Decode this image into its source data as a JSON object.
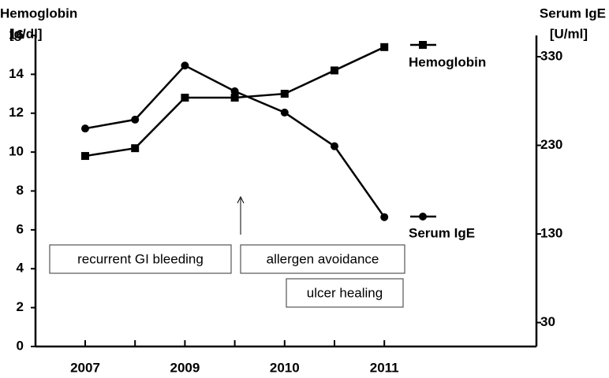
{
  "chart_data": {
    "type": "line",
    "ylabel": "Hemoglobin",
    "yunit": "[g/dl]",
    "y2label": "Serum IgE",
    "y2unit": "[U/ml]",
    "categories": [
      "2007",
      null,
      "2009",
      null,
      "2010",
      null,
      "2011"
    ],
    "series": [
      {
        "name": "Hemoglobin",
        "color": "#000000",
        "marker": "square",
        "values": [
          9.8,
          10.2,
          12.8,
          12.8,
          13.0,
          14.2,
          15.4
        ]
      },
      {
        "name": "Serum IgE",
        "color": "#000000",
        "marker": "circle",
        "axis": "y2",
        "values": [
          249,
          259,
          320,
          291,
          267,
          229,
          149
        ]
      }
    ],
    "ylim": [
      0,
      16
    ],
    "yticks": [
      0,
      2,
      4,
      6,
      8,
      10,
      12,
      14,
      16
    ],
    "y2lim": [
      3,
      354
    ],
    "y2ticks": [
      30,
      130,
      230,
      330
    ],
    "annotations": [
      "recurrent GI bleeding",
      "allergen avoidance",
      "ulcer healing"
    ]
  }
}
